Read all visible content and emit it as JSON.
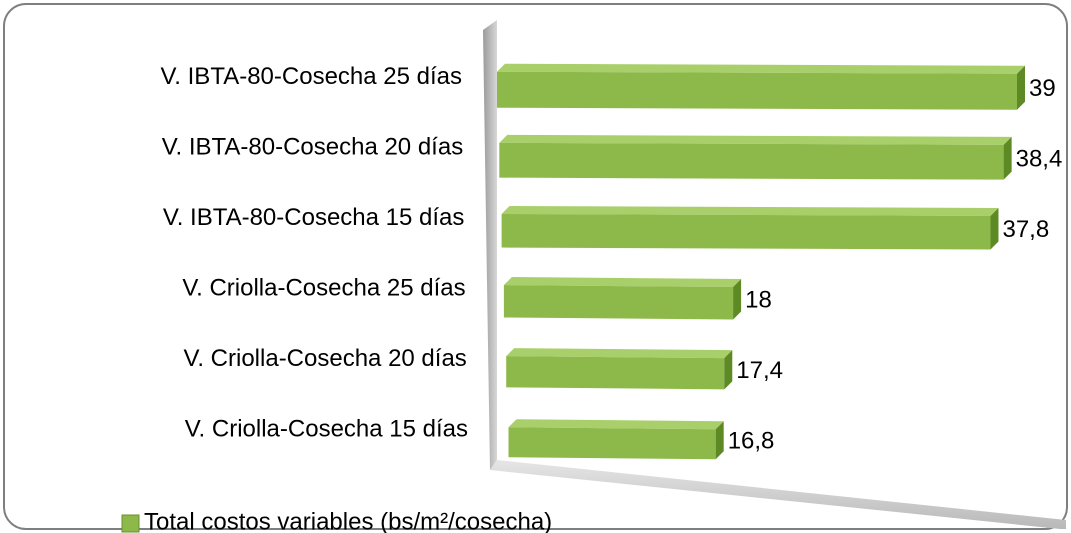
{
  "chart_data": {
    "type": "bar",
    "categories": [
      "V. IBTA-80-Cosecha 25 días",
      "V. IBTA-80-Cosecha 20 días",
      "V. IBTA-80-Cosecha 15 días",
      "V. Criolla-Cosecha 25 días",
      "V. Criolla-Cosecha 20 días",
      "V. Criolla-Cosecha 15 días"
    ],
    "series": [
      {
        "name": "Total costos variables (bs/m²/cosecha)",
        "color": "#8db94a",
        "values": [
          39,
          38.4,
          37.8,
          18,
          17.4,
          16.8
        ],
        "value_labels": [
          "39",
          "38,4",
          "37,8",
          "18",
          "17,4",
          "16,8"
        ]
      }
    ]
  }
}
